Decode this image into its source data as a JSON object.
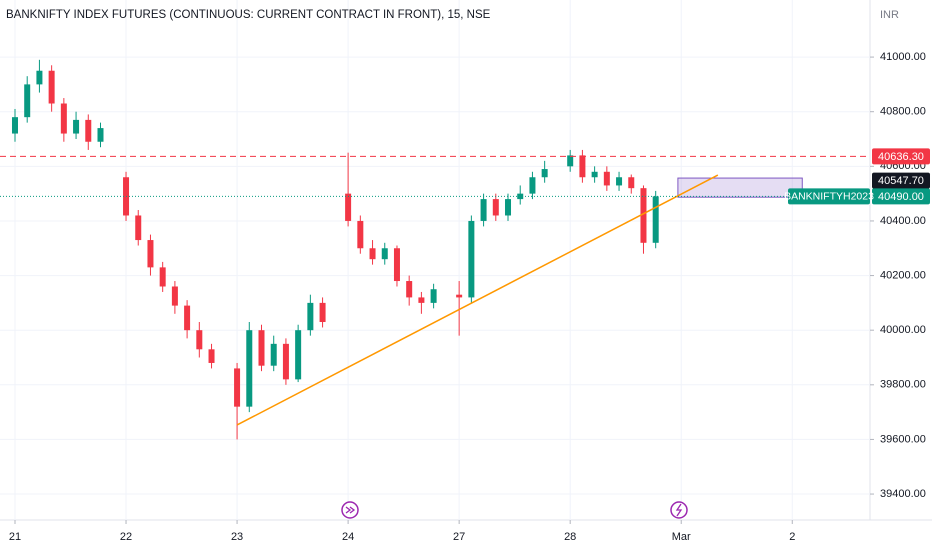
{
  "chart_data": {
    "type": "candlestick",
    "title": "BANKNIFTY INDEX FUTURES (CONTINUOUS: CURRENT CONTRACT IN FRONT), 15, NSE",
    "currency": "INR",
    "x": [
      0,
      0.11,
      0.22,
      0.33,
      0.44,
      0.55,
      0.66,
      0.77,
      1,
      1.11,
      1.22,
      1.33,
      1.44,
      1.55,
      1.66,
      1.77,
      2,
      2.11,
      2.22,
      2.33,
      2.44,
      2.55,
      2.66,
      2.77,
      3,
      3.11,
      3.22,
      3.33,
      3.44,
      3.55,
      3.66,
      3.77,
      4,
      4.11,
      4.22,
      4.33,
      4.44,
      4.55,
      4.66,
      4.77,
      5,
      5.11,
      5.22,
      5.33,
      5.44,
      5.55,
      5.66,
      5.77
    ],
    "open": [
      40720,
      40780,
      40900,
      40950,
      40830,
      40720,
      40770,
      40690,
      40560,
      40420,
      40330,
      40230,
      40160,
      40090,
      40000,
      39930,
      39860,
      39720,
      40000,
      39870,
      39950,
      39820,
      40000,
      40100,
      40500,
      40400,
      40300,
      40260,
      40300,
      40180,
      40120,
      40100,
      40130,
      40120,
      40400,
      40480,
      40420,
      40480,
      40500,
      40560,
      40600,
      40640,
      40560,
      40580,
      40530,
      40560,
      40520,
      40320
    ],
    "high": [
      40810,
      40930,
      40990,
      40970,
      40850,
      40800,
      40790,
      40760,
      40580,
      40440,
      40350,
      40250,
      40180,
      40110,
      40030,
      39950,
      39880,
      40030,
      40020,
      39980,
      39970,
      40020,
      40130,
      40120,
      40650,
      40420,
      40330,
      40320,
      40310,
      40200,
      40140,
      40170,
      40180,
      40420,
      40500,
      40500,
      40500,
      40530,
      40580,
      40620,
      40660,
      40660,
      40600,
      40600,
      40580,
      40570,
      40530,
      40510
    ],
    "low": [
      40690,
      40760,
      40870,
      40800,
      40690,
      40700,
      40660,
      40670,
      40400,
      40310,
      40200,
      40140,
      40060,
      39970,
      39900,
      39860,
      39600,
      39700,
      39850,
      39850,
      39800,
      39810,
      39980,
      40010,
      40380,
      40280,
      40240,
      40240,
      40160,
      40090,
      40060,
      40080,
      39980,
      40100,
      40380,
      40400,
      40400,
      40460,
      40480,
      40540,
      40580,
      40540,
      40540,
      40510,
      40510,
      40500,
      40280,
      40300
    ],
    "close": [
      40780,
      40900,
      40950,
      40830,
      40720,
      40770,
      40690,
      40740,
      40420,
      40330,
      40230,
      40160,
      40090,
      40000,
      39930,
      39880,
      39720,
      40000,
      39870,
      39950,
      39820,
      40000,
      40100,
      40030,
      40400,
      40300,
      40260,
      40300,
      40180,
      40120,
      40100,
      40150,
      40120,
      40400,
      40480,
      40420,
      40480,
      40500,
      40560,
      40590,
      40640,
      40560,
      40580,
      40530,
      40560,
      40520,
      40320,
      40490
    ],
    "up_color": "#089981",
    "down_color": "#f23645",
    "xlim": [
      -0.135,
      7.7
    ],
    "xticks": [
      {
        "value": 0,
        "label": "21"
      },
      {
        "value": 1,
        "label": "22"
      },
      {
        "value": 2,
        "label": "23"
      },
      {
        "value": 3,
        "label": "24"
      },
      {
        "value": 4,
        "label": "27"
      },
      {
        "value": 5,
        "label": "28"
      },
      {
        "value": 6,
        "label": "Mar"
      },
      {
        "value": 7,
        "label": "2"
      }
    ],
    "ylim": [
      39305,
      41209
    ],
    "yticks": [
      {
        "value": 39400,
        "label": "39400.00"
      },
      {
        "value": 39600,
        "label": "39600.00"
      },
      {
        "value": 39800,
        "label": "39800.00"
      },
      {
        "value": 40000,
        "label": "40000.00"
      },
      {
        "value": 40200,
        "label": "40200.00"
      },
      {
        "value": 40400,
        "label": "40400.00"
      },
      {
        "value": 40600,
        "label": "40600.00"
      },
      {
        "value": 40800,
        "label": "40800.00"
      },
      {
        "value": 41000,
        "label": "41000.00"
      }
    ],
    "grid": true,
    "price_labels": [
      {
        "value": 40636.3,
        "label": "40636.30",
        "color": "#f23645",
        "line": "dashed"
      },
      {
        "value": 40547.7,
        "label": "40547.70",
        "color": "#131722"
      },
      {
        "value": 40490,
        "label": "40490.00",
        "color": "#089981",
        "name": "BANKNIFTYH2023",
        "line": "dotted"
      }
    ],
    "trend_line": {
      "x": [
        2.0,
        6.33
      ],
      "y": [
        39653,
        40568
      ],
      "color": "#ff9800"
    },
    "box": {
      "x": [
        5.97,
        7.09
      ],
      "y": [
        40487,
        40557
      ],
      "color": "#7e57c2"
    }
  }
}
